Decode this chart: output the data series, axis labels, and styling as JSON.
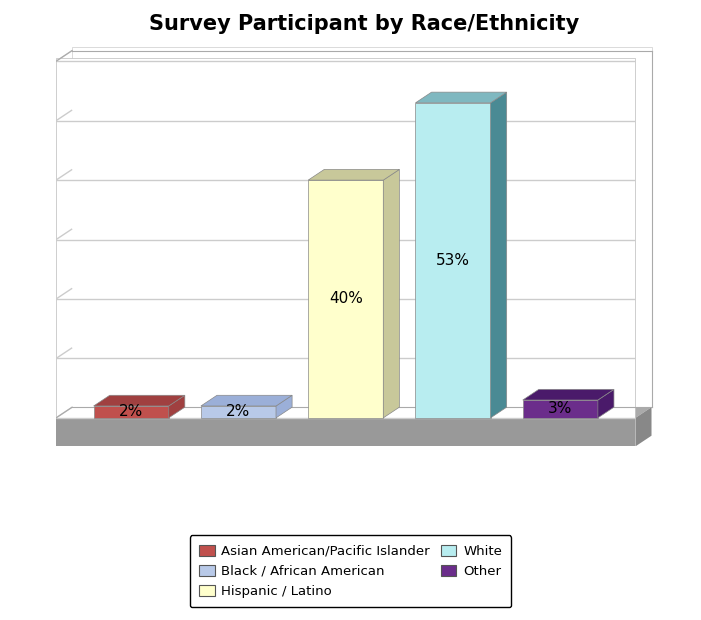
{
  "title": "Survey Participant by Race/Ethnicity",
  "categories": [
    "Asian American/Pacific Islander",
    "Black / African American",
    "Hispanic / Latino",
    "White",
    "Other"
  ],
  "values": [
    2,
    2,
    40,
    53,
    3
  ],
  "labels": [
    "2%",
    "2%",
    "40%",
    "53%",
    "3%"
  ],
  "bar_colors": [
    "#c0504d",
    "#b8c9e8",
    "#ffffcc",
    "#b8edf0",
    "#6b2d8b"
  ],
  "bar_top_colors": [
    "#a04040",
    "#9bafd8",
    "#c8c89a",
    "#7fb8c0",
    "#4a1a6a"
  ],
  "bar_side_colors": [
    "#a04040",
    "#9bafd8",
    "#c8c89a",
    "#4a8a94",
    "#4a1a6a"
  ],
  "background_color": "#ffffff",
  "plot_bg_color": "#ffffff",
  "floor_color": "#999999",
  "legend_labels": [
    "Asian American/Pacific Islander",
    "Black / African American",
    "Hispanic / Latino",
    "White",
    "Other"
  ],
  "legend_colors": [
    "#c0504d",
    "#b8c9e8",
    "#ffffcc",
    "#b8edf0",
    "#6b2d8b"
  ],
  "title_fontsize": 15,
  "label_fontsize": 11,
  "ylim": [
    0,
    60
  ],
  "bar_width": 0.7,
  "grid_color": "#cccccc",
  "grid_linewidth": 1.0,
  "grid_steps": [
    0,
    10,
    20,
    30,
    40,
    50,
    60
  ]
}
